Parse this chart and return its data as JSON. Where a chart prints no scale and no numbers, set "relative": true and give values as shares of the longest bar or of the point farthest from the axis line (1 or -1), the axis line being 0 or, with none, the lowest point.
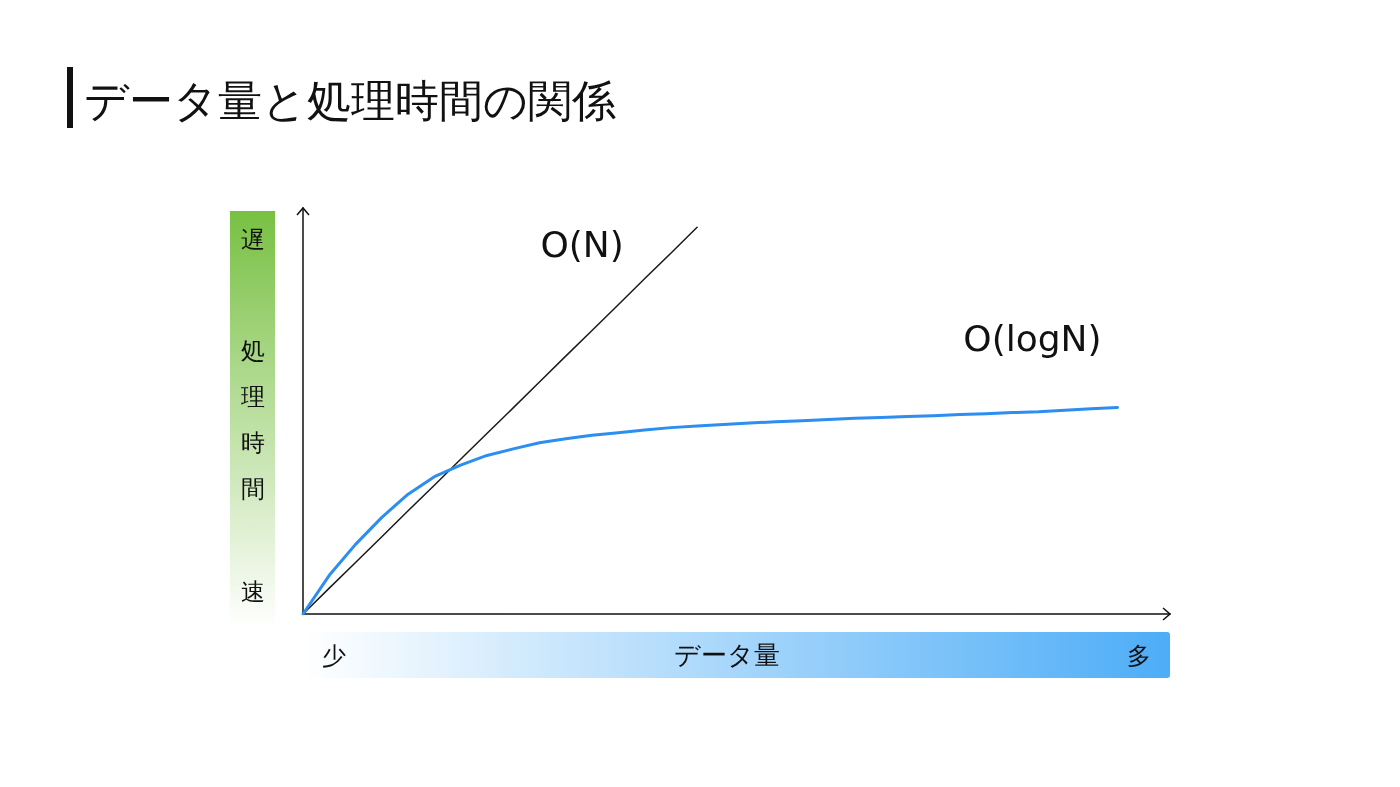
{
  "chart_data": {
    "type": "line",
    "title": "データ量と処理時間の関係",
    "xlabel": "データ量",
    "ylabel": "処理時間",
    "annotations": [
      "遅",
      "速",
      "少",
      "多"
    ],
    "relative": true,
    "marker": "none",
    "categories": [
      null,
      null,
      null,
      null,
      null,
      null,
      null,
      null,
      null,
      null,
      null,
      null,
      null,
      null,
      null,
      null,
      null,
      null,
      null,
      null,
      null,
      null,
      null,
      null,
      null,
      null,
      null,
      null,
      null,
      null,
      null,
      null,
      null,
      null
    ],
    "series": [
      {
        "name": "O(N)",
        "color": "#1a1a1a",
        "values": [
          0,
          0.067,
          0.133,
          0.2,
          0.267,
          0.333,
          0.4,
          0.467,
          0.533,
          0.6,
          0.667,
          0.733,
          0.8,
          0.867,
          0.933,
          1,
          null,
          null,
          null,
          null,
          null,
          null,
          null,
          null,
          null,
          null,
          null,
          null,
          null,
          null,
          null,
          null,
          null,
          null
        ]
      },
      {
        "name": "O(logN)",
        "color": "#2b8ef0",
        "values": [
          0,
          0.1,
          0.18,
          0.25,
          0.31,
          0.355,
          0.385,
          0.41,
          0.427,
          0.443,
          0.453,
          0.462,
          0.469,
          0.476,
          0.482,
          0.486,
          0.49,
          0.494,
          0.497,
          0.5,
          0.503,
          0.506,
          0.508,
          0.511,
          0.513,
          0.516,
          0.518,
          0.521,
          0.523,
          0.527,
          0.531,
          0.534,
          null,
          null
        ]
      }
    ]
  }
}
